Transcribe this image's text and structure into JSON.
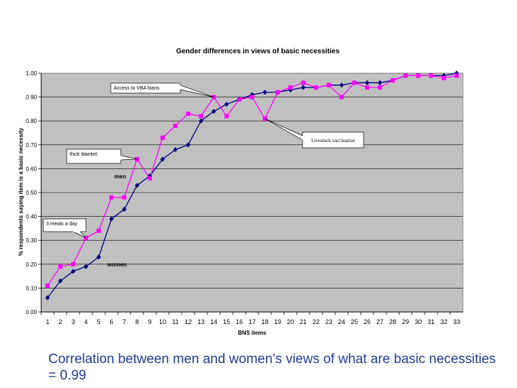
{
  "chart_data": {
    "type": "line",
    "title": "Gender differences in views of basic necessities",
    "xlabel": "BNS items",
    "ylabel": "% respondents saying item is a basic necessity",
    "categories": [
      "1",
      "2",
      "3",
      "4",
      "5",
      "6",
      "7",
      "8",
      "9",
      "10",
      "11",
      "12",
      "13",
      "14",
      "15",
      "16",
      "17",
      "18",
      "19",
      "20",
      "21",
      "22",
      "23",
      "24",
      "25",
      "26",
      "27",
      "28",
      "29",
      "30",
      "31",
      "32",
      "33"
    ],
    "ylim": [
      0,
      1.0
    ],
    "yticks": [
      "0.00",
      "0.10",
      "0.20",
      "0.30",
      "0.40",
      "0.50",
      "0.60",
      "0.70",
      "0.80",
      "0.90",
      "1.00"
    ],
    "grid": true,
    "series": [
      {
        "name": "women",
        "color": "#000080",
        "marker": "diamond",
        "values": [
          0.06,
          0.13,
          0.17,
          0.19,
          0.23,
          0.39,
          0.43,
          0.53,
          0.57,
          0.64,
          0.68,
          0.7,
          0.8,
          0.84,
          0.87,
          0.89,
          0.91,
          0.92,
          0.92,
          0.93,
          0.94,
          0.94,
          0.95,
          0.95,
          0.96,
          0.96,
          0.96,
          0.97,
          0.99,
          0.99,
          0.99,
          0.99,
          1.0
        ]
      },
      {
        "name": "men",
        "color": "#ff00ff",
        "marker": "square",
        "values": [
          0.11,
          0.19,
          0.2,
          0.31,
          0.34,
          0.48,
          0.48,
          0.64,
          0.56,
          0.73,
          0.78,
          0.83,
          0.82,
          0.9,
          0.82,
          0.89,
          0.9,
          0.81,
          0.92,
          0.94,
          0.96,
          0.94,
          0.95,
          0.9,
          0.96,
          0.94,
          0.94,
          0.97,
          0.99,
          0.99,
          0.99,
          0.98,
          0.99
        ]
      }
    ],
    "annotations": [
      {
        "text": "Access to VBA loans",
        "x": "14",
        "y": 0.9
      },
      {
        "text": "Livestock vaccination",
        "x": "18",
        "y": 0.81
      },
      {
        "text": "thick blanket",
        "x": "8",
        "y": 0.64
      },
      {
        "text": "3 meals a day",
        "x": "4",
        "y": 0.31
      }
    ]
  },
  "caption": "Correlation between men and women’s views of what are basic necessities = 0.99",
  "colors": {
    "plot_background": "#c0c0c0",
    "gridline": "#000000",
    "women": "#000080",
    "men": "#ff00ff",
    "caption_text": "#1f3f9a"
  }
}
